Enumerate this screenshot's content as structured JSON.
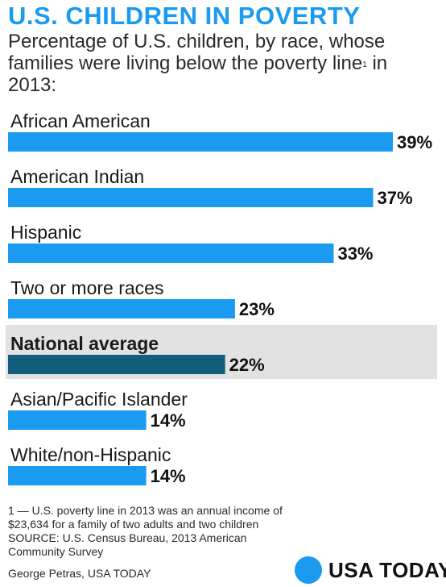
{
  "header": {
    "title": "U.S. CHILDREN IN POVERTY",
    "subtitle": "Percentage of U.S. children, by race, whose families were living below the poverty line",
    "subtitle_mark": "1",
    "subtitle_end": "in 2013:"
  },
  "chart_data": {
    "type": "bar",
    "orientation": "horizontal",
    "unit": "%",
    "categories": [
      "African American",
      "American Indian",
      "Hispanic",
      "Two or more races",
      "National average",
      "Asian/Pacific Islander",
      "White/non-Hispanic"
    ],
    "values": [
      39,
      37,
      33,
      23,
      22,
      14,
      14
    ],
    "value_labels": [
      "39%",
      "37%",
      "33%",
      "23%",
      "22%",
      "14%",
      "14%"
    ],
    "highlight": "National average",
    "colors": {
      "bar": "#1a9bf0",
      "highlight_bar": "#135e7d",
      "highlight_background": "#e2e2e2"
    },
    "xlim": [
      0,
      39
    ],
    "grid": false
  },
  "footer": {
    "footnote": "1 — U.S. poverty line in 2013 was an annual income of $23,634 for a family of two adults and two children",
    "source": "SOURCE: U.S. Census Bureau, 2013 American Community Survey",
    "credit": "George Petras, USA TODAY",
    "logo_text": "USA TODAY"
  }
}
